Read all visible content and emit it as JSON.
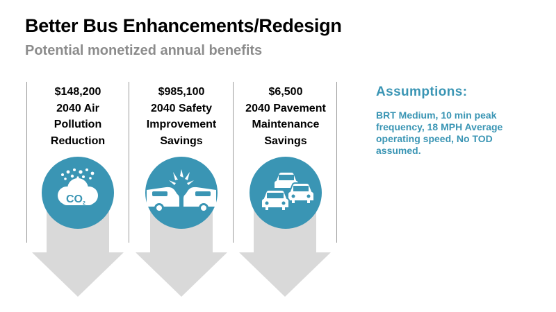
{
  "slide": {
    "title": "Better Bus Enhancements/Redesign",
    "subtitle": "Potential monetized annual benefits"
  },
  "colors": {
    "accent": "#3a95b4",
    "arrow": "#d9d9d9",
    "divider": "#9a9a9a",
    "subtitle": "#8c8c8c"
  },
  "benefits": [
    {
      "amount": "$148,200",
      "lines": [
        "2040 Air",
        "Pollution",
        "Reduction"
      ],
      "icon": "co2-cloud-icon",
      "icon_text": "CO",
      "icon_sub": "2"
    },
    {
      "amount": "$985,100",
      "lines": [
        "2040 Safety",
        "Improvement",
        "Savings"
      ],
      "icon": "car-collision-icon"
    },
    {
      "amount": "$6,500",
      "lines": [
        "2040 Pavement",
        "Maintenance",
        "Savings"
      ],
      "icon": "traffic-cars-icon"
    }
  ],
  "assumptions": {
    "title": "Assumptions:",
    "text": "BRT Medium, 10 min peak frequency, 18 MPH Average operating speed, No TOD assumed."
  }
}
